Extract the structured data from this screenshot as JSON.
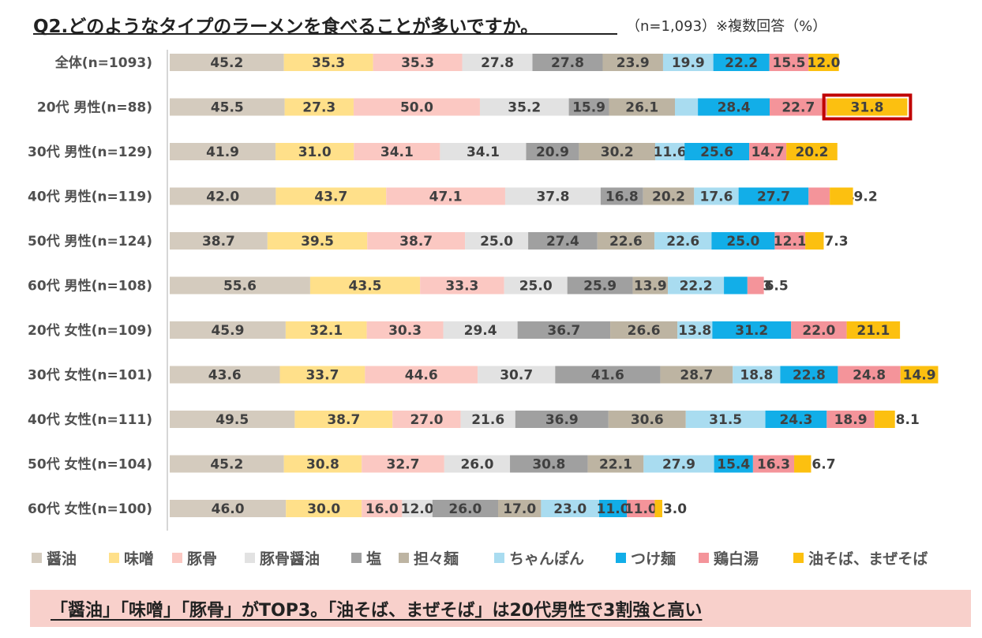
{
  "header": {
    "title": "Q2.どのようなタイプのラーメンを食べることが多いですか。",
    "note": "（n=1,093）※複数回答（%）"
  },
  "banner": {
    "text": "「醤油」「味噌」「豚骨」がTOP3。「油そば、まぜそば」は20代男性で3割強と高い"
  },
  "chart_data": {
    "type": "bar",
    "orientation": "horizontal",
    "stacked": true,
    "categories": [
      "全体(n=1093)",
      "20代 男性(n=88)",
      "30代 男性(n=129)",
      "40代 男性(n=119)",
      "50代 男性(n=124)",
      "60代 男性(n=108)",
      "20代 女性(n=109)",
      "30代 女性(n=101)",
      "40代 女性(n=111)",
      "50代 女性(n=104)",
      "60代 女性(n=100)"
    ],
    "series": [
      {
        "name": "醤油",
        "color": "#d4cbbe",
        "values": [
          45.2,
          45.5,
          41.9,
          42.0,
          38.7,
          55.6,
          45.9,
          43.6,
          49.5,
          45.2,
          46.0
        ]
      },
      {
        "name": "味噌",
        "color": "#ffe08a",
        "values": [
          35.3,
          27.3,
          31.0,
          43.7,
          39.5,
          43.5,
          32.1,
          33.7,
          38.7,
          30.8,
          30.0
        ]
      },
      {
        "name": "豚骨",
        "color": "#fbc8c2",
        "values": [
          35.3,
          50.0,
          34.1,
          47.1,
          38.7,
          33.3,
          30.3,
          44.6,
          27.0,
          32.7,
          16.0
        ]
      },
      {
        "name": "豚骨醤油",
        "color": "#e2e2e2",
        "values": [
          27.8,
          35.2,
          34.1,
          37.8,
          25.0,
          25.0,
          29.4,
          30.7,
          21.6,
          26.0,
          12.0
        ]
      },
      {
        "name": "塩",
        "color": "#a0a0a0",
        "values": [
          27.8,
          15.9,
          20.9,
          16.8,
          27.4,
          25.9,
          36.7,
          41.6,
          36.9,
          30.8,
          26.0
        ]
      },
      {
        "name": "担々麺",
        "color": "#bdb4a2",
        "values": [
          23.9,
          26.1,
          30.2,
          20.2,
          22.6,
          13.9,
          26.6,
          28.7,
          30.6,
          22.1,
          17.0
        ]
      },
      {
        "name": "ちゃんぽん",
        "color": "#a9dcf0",
        "values": [
          19.9,
          9.1,
          11.6,
          17.6,
          22.6,
          22.2,
          13.8,
          18.8,
          31.5,
          27.9,
          23.0
        ]
      },
      {
        "name": "つけ麺",
        "color": "#12aee8",
        "values": [
          22.2,
          28.4,
          25.6,
          27.7,
          25.0,
          9.3,
          31.2,
          22.8,
          24.3,
          15.4,
          11.0
        ]
      },
      {
        "name": "鶏白湯",
        "color": "#f4949a",
        "values": [
          15.5,
          22.7,
          14.7,
          8.4,
          12.1,
          6.5,
          22.0,
          24.8,
          18.9,
          16.3,
          11.0
        ]
      },
      {
        "name": "油そば、まぜそば",
        "color": "#fcc010",
        "values": [
          12.0,
          31.8,
          20.2,
          9.2,
          7.3,
          null,
          21.1,
          14.9,
          8.1,
          6.7,
          3.0
        ]
      }
    ],
    "highlight": {
      "category": "20代 男性(n=88)",
      "series": "油そば、まぜそば",
      "color": "#c00000"
    },
    "legend": "bottom"
  }
}
